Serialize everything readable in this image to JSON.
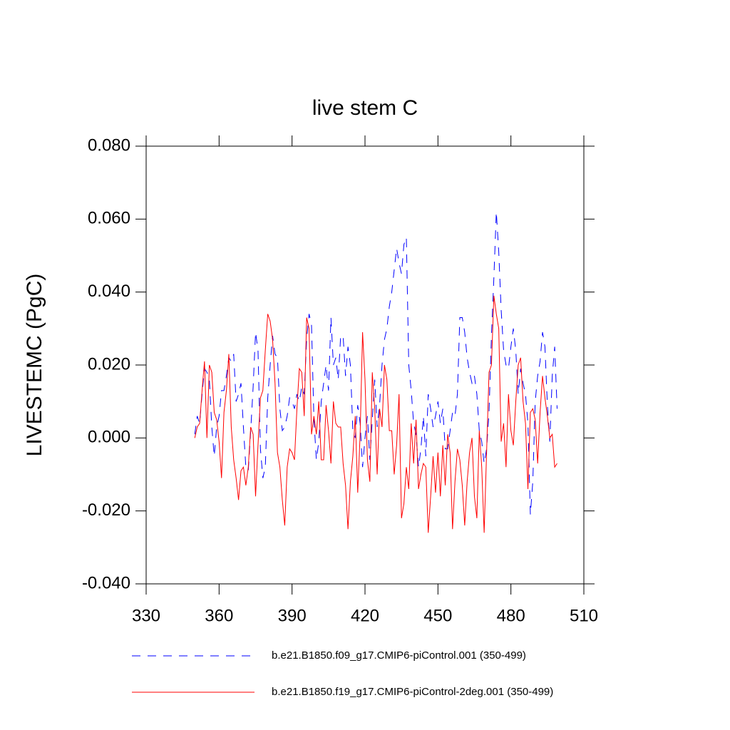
{
  "chart_data": {
    "type": "line",
    "title": "live stem C",
    "y_label": "LIVESTEMC  (PgC)",
    "xlim": [
      330,
      510
    ],
    "ylim": [
      -0.04,
      0.08
    ],
    "xticks": [
      330,
      360,
      390,
      420,
      450,
      480,
      510
    ],
    "yticks": [
      {
        "value": -0.04,
        "label": "-0.040"
      },
      {
        "value": -0.02,
        "label": "-0.020"
      },
      {
        "value": 0,
        "label": "0.000"
      },
      {
        "value": 0.02,
        "label": "0.020"
      },
      {
        "value": 0.04,
        "label": "0.040"
      },
      {
        "value": 0.06,
        "label": "0.060"
      },
      {
        "value": 0.08,
        "label": "0.080"
      }
    ],
    "x": [
      350,
      351,
      352,
      353,
      354,
      355,
      356,
      357,
      358,
      359,
      360,
      361,
      362,
      363,
      364,
      365,
      366,
      367,
      368,
      369,
      370,
      371,
      372,
      373,
      374,
      375,
      376,
      377,
      378,
      379,
      380,
      381,
      382,
      383,
      384,
      385,
      386,
      387,
      388,
      389,
      390,
      391,
      392,
      393,
      394,
      395,
      396,
      397,
      398,
      399,
      400,
      401,
      402,
      403,
      404,
      405,
      406,
      407,
      408,
      409,
      410,
      411,
      412,
      413,
      414,
      415,
      416,
      417,
      418,
      419,
      420,
      421,
      422,
      423,
      424,
      425,
      426,
      427,
      428,
      429,
      430,
      431,
      432,
      433,
      434,
      435,
      436,
      437,
      438,
      439,
      440,
      441,
      442,
      443,
      444,
      445,
      446,
      447,
      448,
      449,
      450,
      451,
      452,
      453,
      454,
      455,
      456,
      457,
      458,
      459,
      460,
      461,
      462,
      463,
      464,
      465,
      466,
      467,
      468,
      469,
      470,
      471,
      472,
      473,
      474,
      475,
      476,
      477,
      478,
      479,
      480,
      481,
      482,
      483,
      484,
      485,
      486,
      487,
      488,
      489,
      490,
      491,
      492,
      493,
      494,
      495,
      496,
      497,
      498,
      499
    ],
    "series": [
      {
        "name": "b.e21.B1850.f09_g17.CMIP6-piControl.001 (350-499)",
        "color": "#0000ff",
        "dash": true,
        "values": [
          0.001,
          0.006,
          0.004,
          0.012,
          0.019,
          0.018,
          0.016,
          0.003,
          -0.005,
          0.003,
          0.006,
          0.013,
          0.013,
          0.017,
          0.022,
          0.021,
          0.023,
          0.01,
          0.012,
          0.015,
          0.003,
          -0.008,
          -0.009,
          0.002,
          0.014,
          0.029,
          0.024,
          -0.003,
          -0.011,
          -0.008,
          0.011,
          0.02,
          0.028,
          0.023,
          0.022,
          0.008,
          0.002,
          0.003,
          0.006,
          0.011,
          0.01,
          0.008,
          0.012,
          0.01,
          0.014,
          0.012,
          0.027,
          0.034,
          0.031,
          0.005,
          -0.006,
          -0.001,
          0.01,
          0.015,
          0.02,
          0.013,
          0.033,
          0.02,
          0.022,
          0.016,
          0.028,
          0.028,
          0.017,
          0.025,
          0.02,
          0.002,
          0.0,
          0.009,
          0.004,
          -0.008,
          0.0,
          0.006,
          -0.006,
          0.005,
          0.016,
          0.003,
          0.009,
          0.02,
          0.027,
          0.03,
          0.036,
          0.04,
          0.046,
          0.052,
          0.048,
          0.045,
          0.053,
          0.055,
          0.02,
          0.013,
          0.004,
          0.001,
          -0.008,
          -0.003,
          0.006,
          -0.005,
          0.012,
          0.008,
          0.003,
          0.006,
          0.01,
          0.004,
          0.008,
          -0.003,
          -0.003,
          0.002,
          0.007,
          0.006,
          0.012,
          0.033,
          0.033,
          0.029,
          0.022,
          0.018,
          0.015,
          0.017,
          0.012,
          0.002,
          -0.001,
          -0.007,
          -0.003,
          0.007,
          0.028,
          0.044,
          0.062,
          0.051,
          0.035,
          0.024,
          0.02,
          0.019,
          0.025,
          0.03,
          0.024,
          0.012,
          0.019,
          0.015,
          0.012,
          0.004,
          -0.021,
          -0.012,
          0.01,
          0.017,
          0.021,
          0.029,
          0.025,
          0.009,
          -0.001,
          0.017,
          0.025,
          0.008
        ]
      },
      {
        "name": "b.e21.B1850.f19_g17.CMIP6-piControl-2deg.001 (350-499)",
        "color": "#ff0000",
        "dash": false,
        "values": [
          0.0,
          0.003,
          0.004,
          0.013,
          0.021,
          0.0,
          0.02,
          0.018,
          0.007,
          0.005,
          -0.001,
          -0.011,
          0.007,
          0.013,
          0.023,
          0.003,
          -0.006,
          -0.011,
          -0.017,
          -0.009,
          -0.008,
          -0.013,
          -0.008,
          0.003,
          0.001,
          -0.016,
          -0.002,
          0.011,
          0.013,
          0.024,
          0.034,
          0.032,
          0.027,
          0.015,
          -0.004,
          -0.008,
          -0.017,
          -0.024,
          -0.008,
          -0.003,
          -0.004,
          -0.006,
          0.008,
          0.019,
          0.018,
          0.006,
          0.033,
          0.03,
          0.001,
          0.006,
          0.001,
          0.01,
          -0.006,
          -0.006,
          0.009,
          0.002,
          -0.007,
          0.01,
          0.004,
          0.003,
          0.003,
          -0.007,
          -0.013,
          -0.025,
          -0.012,
          -0.005,
          0.006,
          -0.015,
          0.001,
          0.029,
          0.016,
          -0.006,
          -0.012,
          0.018,
          0.008,
          -0.01,
          0.008,
          0.003,
          0.02,
          0.016,
          0.002,
          0.002,
          -0.01,
          -0.002,
          0.012,
          -0.022,
          -0.018,
          -0.008,
          -0.014,
          0.004,
          -0.007,
          0.005,
          -0.014,
          -0.01,
          -0.007,
          -0.008,
          -0.026,
          -0.016,
          -0.005,
          -0.015,
          -0.004,
          -0.016,
          -0.002,
          -0.013,
          0.001,
          -0.004,
          -0.025,
          -0.012,
          -0.003,
          -0.006,
          -0.013,
          -0.024,
          -0.012,
          -0.004,
          0.0,
          -0.016,
          -0.022,
          0.002,
          -0.008,
          -0.026,
          -0.004,
          0.018,
          0.02,
          0.039,
          0.034,
          0.03,
          -0.001,
          0.004,
          -0.008,
          0.012,
          0.002,
          -0.002,
          0.01,
          0.02,
          0.022,
          0.01,
          0.004,
          -0.014,
          0.007,
          0.008,
          0.005,
          -0.007,
          0.007,
          0.017,
          0.011,
          0.006,
          0.0,
          0.001,
          -0.008,
          -0.007
        ]
      }
    ]
  }
}
